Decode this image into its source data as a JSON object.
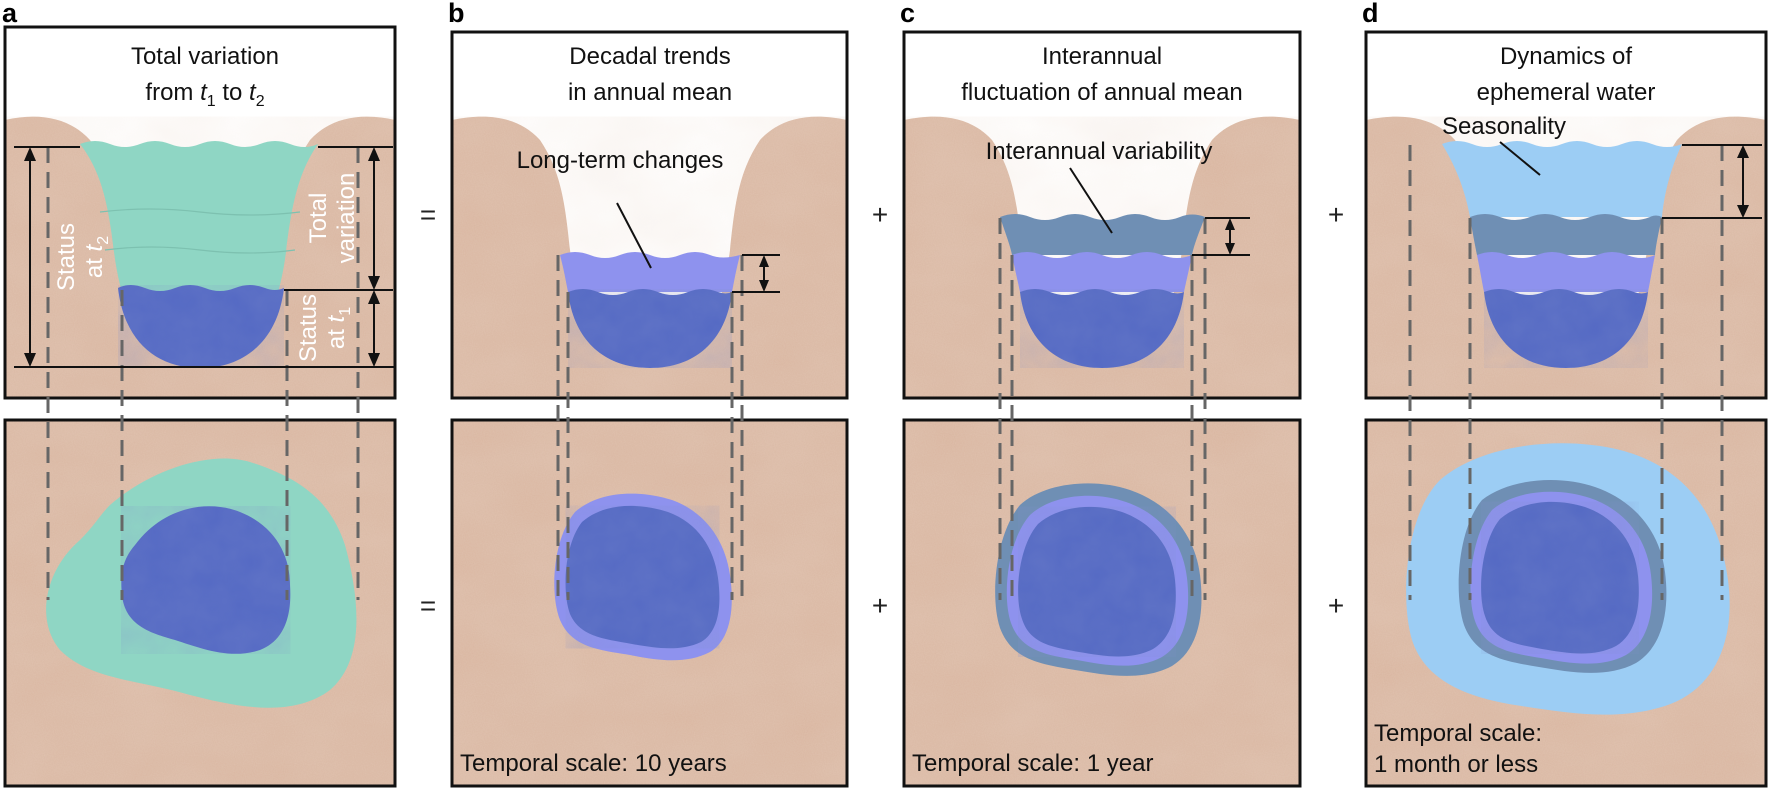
{
  "panels": {
    "a": {
      "letter": "a",
      "title_line1": "Total variation",
      "title_line2_from": "from ",
      "title_line2_t": "t",
      "title_line2_sub1": "1",
      "title_line2_to": " to ",
      "title_line2_sub2": "2",
      "status_t2_line1": "Status",
      "status_t2_line2": "at ",
      "status_t2_t": "t",
      "status_t2_sub": "2",
      "total_var_line1": "Total",
      "total_var_line2": "variation",
      "status_t1_line1": "Status",
      "status_t1_line2": "at ",
      "status_t1_t": "t",
      "status_t1_sub": "1"
    },
    "b": {
      "letter": "b",
      "title_line1": "Decadal trends",
      "title_line2": "in annual mean",
      "callout": "Long-term changes",
      "temporal": "Temporal scale: 10 years"
    },
    "c": {
      "letter": "c",
      "title_line1": "Interannual",
      "title_line2": "fluctuation of annual mean",
      "callout": "Interannual variability",
      "temporal": "Temporal scale: 1 year"
    },
    "d": {
      "letter": "d",
      "title_line1": "Dynamics of",
      "title_line2": "ephemeral water",
      "callout": "Seasonality",
      "temporal_line1": "Temporal scale:",
      "temporal_line2": "1 month or less"
    }
  },
  "operators": {
    "eq_top": "=",
    "eq_bottom": "=",
    "plus_top_1": "+",
    "plus_bottom_1": "+",
    "plus_top_2": "+",
    "plus_bottom_2": "+"
  },
  "colors": {
    "sand": "#d8b49e",
    "sand_dark": "#c39d86",
    "teal": "#8fd6c4",
    "deep_blue": "#5469c4",
    "lavender": "#8e92ee",
    "slate": "#6f8fb4",
    "light_blue": "#9ccdf4",
    "frame": "#111111",
    "dash": "#6b6b6b"
  }
}
